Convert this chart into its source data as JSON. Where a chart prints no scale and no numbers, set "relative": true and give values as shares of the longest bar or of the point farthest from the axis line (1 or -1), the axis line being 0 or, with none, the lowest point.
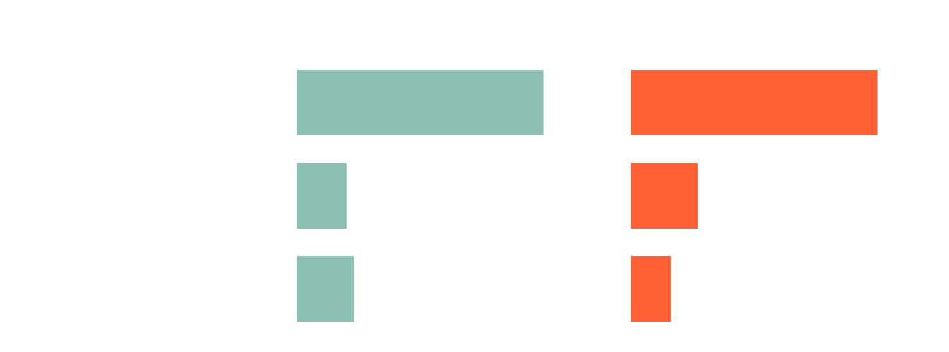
{
  "chart_data": [
    {
      "type": "bar",
      "orientation": "horizontal",
      "relative": true,
      "categories": [
        null,
        null,
        null
      ],
      "series": [
        {
          "color": "#8bc0b2",
          "values": [
            1,
            0.2,
            0.23
          ]
        }
      ],
      "grid": false
    },
    {
      "type": "bar",
      "orientation": "horizontal",
      "relative": true,
      "categories": [
        null,
        null,
        null
      ],
      "series": [
        {
          "color": "#ff5f35",
          "values": [
            1,
            0.27,
            0.16
          ]
        }
      ],
      "grid": false
    }
  ]
}
